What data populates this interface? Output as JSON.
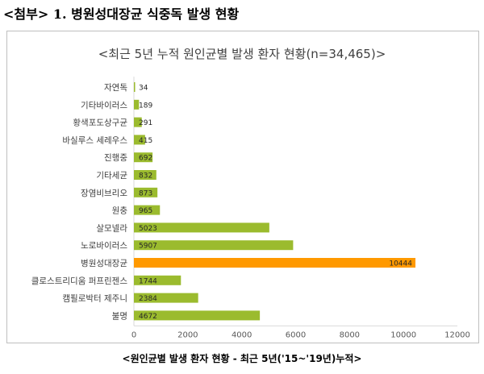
{
  "heading": "<첨부> 1. 병원성대장균 식중독 발생 현황",
  "footer_caption": "<원인균별 발생 환자 현황 - 최근 5년('15~'19년)누적>",
  "chart_data": {
    "type": "bar",
    "orientation": "horizontal",
    "title": "<최근 5년 누적 원인균별 발생 환자 현황(n=34,465)>",
    "categories": [
      "자연독",
      "기타바이러스",
      "황색포도상구균",
      "바실루스 세레우스",
      "진행중",
      "기타세균",
      "장염비브리오",
      "원충",
      "살모넬라",
      "노로바이러스",
      "병원성대장균",
      "클로스트리디움 퍼프린젠스",
      "캠필로박터 제주니",
      "불명"
    ],
    "values": [
      34,
      189,
      291,
      415,
      692,
      832,
      873,
      965,
      5023,
      5907,
      10444,
      1744,
      2384,
      4672
    ],
    "data_labels": [
      "34",
      "189",
      "291",
      "415",
      "692",
      "832",
      "873",
      "965",
      "5023",
      "5907",
      "10444",
      "1744",
      "2384",
      "4672"
    ],
    "highlight_category": "병원성대장균",
    "xlim": [
      0,
      12000
    ],
    "x_ticks": [
      0,
      2000,
      4000,
      6000,
      8000,
      10000,
      12000
    ],
    "x_tick_labels": [
      "0",
      "2000",
      "4000",
      "6000",
      "8000",
      "10000",
      "12000"
    ],
    "colors": {
      "bar": "#9bbb2e",
      "highlight": "#ff9900",
      "axis": "#d9d9d9",
      "tick_text": "#595959"
    },
    "grid": false,
    "legend": "none"
  }
}
